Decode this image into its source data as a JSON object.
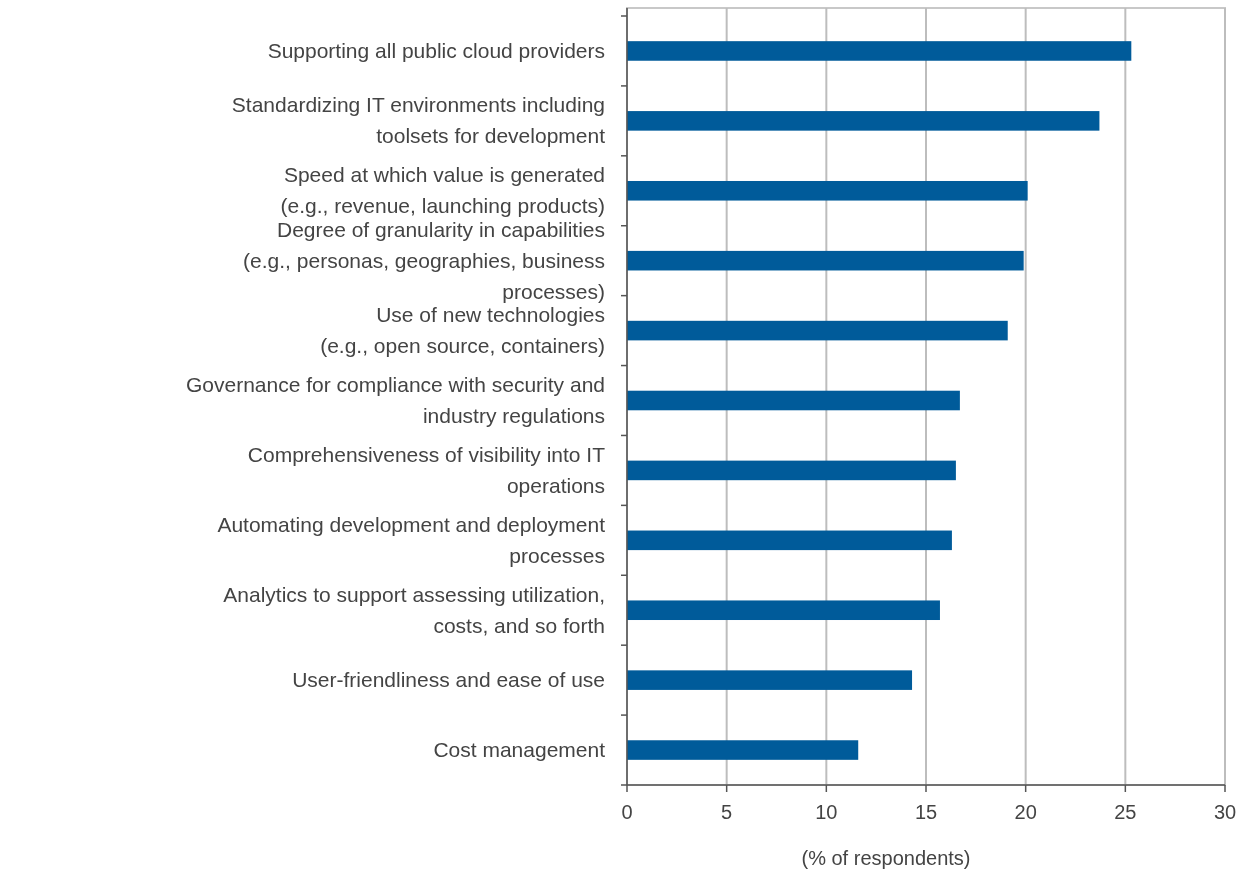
{
  "chart_data": {
    "type": "bar",
    "orientation": "horizontal",
    "xlabel": "(% of respondents)",
    "categories": [
      "Supporting all public cloud providers",
      "Standardizing IT environments including toolsets for development",
      "Speed at which value is generated (e.g., revenue, launching products)",
      "Degree of granularity in capabilities (e.g., personas, geographies, business processes)",
      "Use of new technologies (e.g., open source, containers)",
      "Governance for compliance with security and industry regulations",
      "Comprehensiveness of visibility into IT operations",
      "Automating development and deployment processes",
      "Analytics to support assessing utilization, costs, and so forth",
      "User-friendliness and ease of use",
      "Cost management"
    ],
    "values": [
      25.3,
      23.7,
      20.1,
      19.9,
      19.1,
      16.7,
      16.5,
      16.3,
      15.7,
      14.3,
      11.6
    ],
    "color": "#005b9a",
    "xlim": [
      0,
      30
    ],
    "xticks": [
      0,
      5,
      10,
      15,
      20,
      25,
      30
    ],
    "grid": "x"
  }
}
